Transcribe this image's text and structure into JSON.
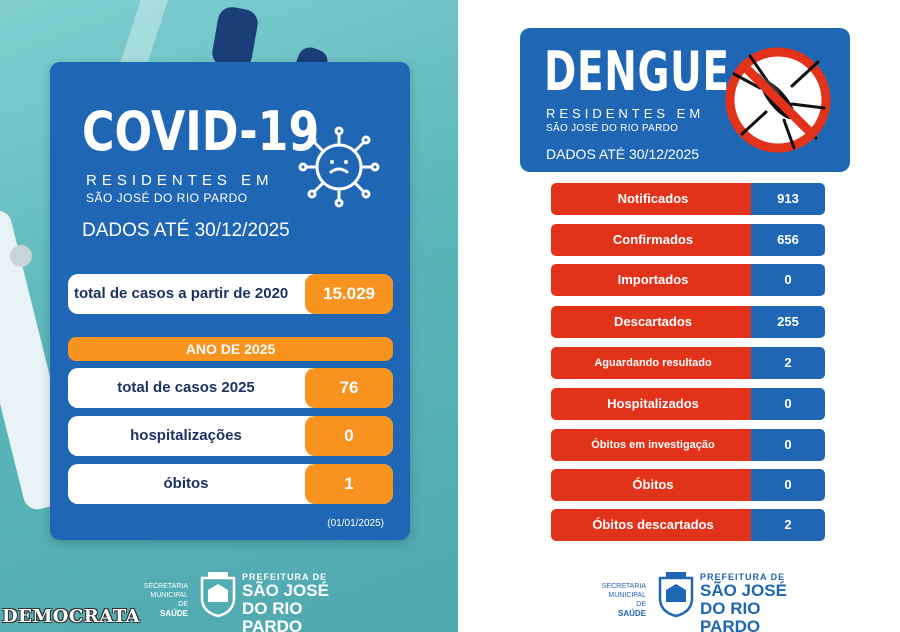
{
  "covid": {
    "title": "COVID-19",
    "subtitle_line1": "RESIDENTES EM",
    "subtitle_line2": "SÃO JOSÉ DO RIO PARDO",
    "date": "DADOS ATÉ 30/12/2025",
    "total_label": "total de casos a partir de 2020",
    "total_value": "15.029",
    "year_label": "ANO DE 2025",
    "rows": [
      {
        "label": "total de casos 2025",
        "value": "76"
      },
      {
        "label": "hospitalizações",
        "value": "0"
      },
      {
        "label": "óbitos",
        "value": "1"
      }
    ],
    "footnote": "(01/01/2025)"
  },
  "dengue": {
    "title": "DENGUE",
    "subtitle_line1": "RESIDENTES EM",
    "subtitle_line2": "SÃO JOSÉ DO RIO PARDO",
    "date": "DADOS ATÉ 30/12/2025",
    "rows": [
      {
        "label": "Notificados",
        "value": "913"
      },
      {
        "label": "Confirmados",
        "value": "656"
      },
      {
        "label": "Importados",
        "value": "0"
      },
      {
        "label": "Descartados",
        "value": "255"
      },
      {
        "label": "Aguardando resultado",
        "value": "2"
      },
      {
        "label": "Hospitalizados",
        "value": "0"
      },
      {
        "label": "Óbitos em investigação",
        "value": "0"
      },
      {
        "label": "Óbitos",
        "value": "0"
      },
      {
        "label": "Óbitos descartados",
        "value": "2"
      }
    ]
  },
  "footer": {
    "secretaria_line1": "SECRETARIA",
    "secretaria_line2": "MUNICIPAL DE",
    "secretaria_line3": "SAÚDE",
    "prefeitura_small": "PREFEITURA DE",
    "prefeitura_big1": "SÃO JOSÉ",
    "prefeitura_big2": "DO RIO PARDO"
  },
  "watermark": "DEMOCRATA",
  "colors": {
    "card_blue": "#1f66b5",
    "accent_orange": "#f7931e",
    "dengue_red": "#e2321a",
    "teal_background": "#5cb7bb"
  },
  "icons": {
    "covid": "coronavirus-icon",
    "dengue": "no-mosquito-icon",
    "crest": "city-crest-icon"
  }
}
